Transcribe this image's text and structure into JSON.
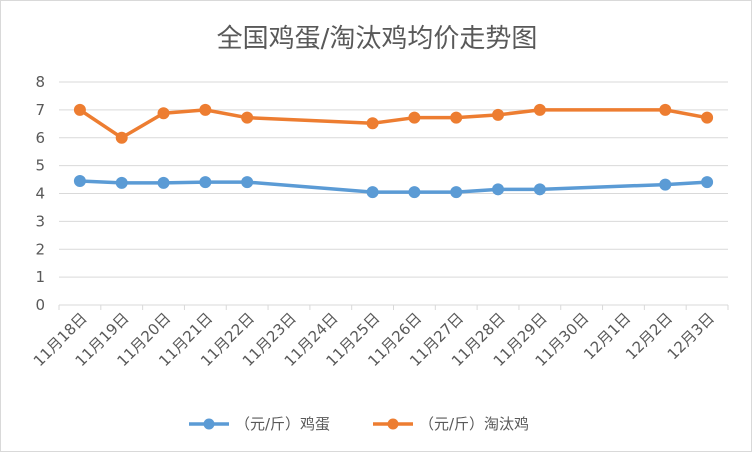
{
  "chart_data": {
    "type": "line",
    "title": "全国鸡蛋/淘汰鸡均价走势图",
    "categories": [
      "11月18日",
      "11月19日",
      "11月20日",
      "11月21日",
      "11月22日",
      "11月23日",
      "11月24日",
      "11月25日",
      "11月26日",
      "11月27日",
      "11月28日",
      "11月29日",
      "11月30日",
      "12月1日",
      "12月2日",
      "12月3日"
    ],
    "ylim": [
      0,
      8
    ],
    "yticks": [
      0,
      1,
      2,
      3,
      4,
      5,
      6,
      7,
      8
    ],
    "grid": true,
    "legend_position": "bottom",
    "series": [
      {
        "name": "（元/斤）鸡蛋",
        "color": "#5b9bd5",
        "values": [
          4.45,
          4.38,
          4.38,
          4.41,
          4.41,
          null,
          null,
          4.05,
          4.05,
          4.05,
          4.15,
          4.15,
          null,
          null,
          4.32,
          4.41
        ]
      },
      {
        "name": "（元/斤）淘汰鸡",
        "color": "#ed7d31",
        "values": [
          7.0,
          6.0,
          6.88,
          7.0,
          6.72,
          null,
          null,
          6.52,
          6.72,
          6.72,
          6.82,
          7.0,
          null,
          null,
          7.0,
          6.72
        ]
      }
    ]
  }
}
